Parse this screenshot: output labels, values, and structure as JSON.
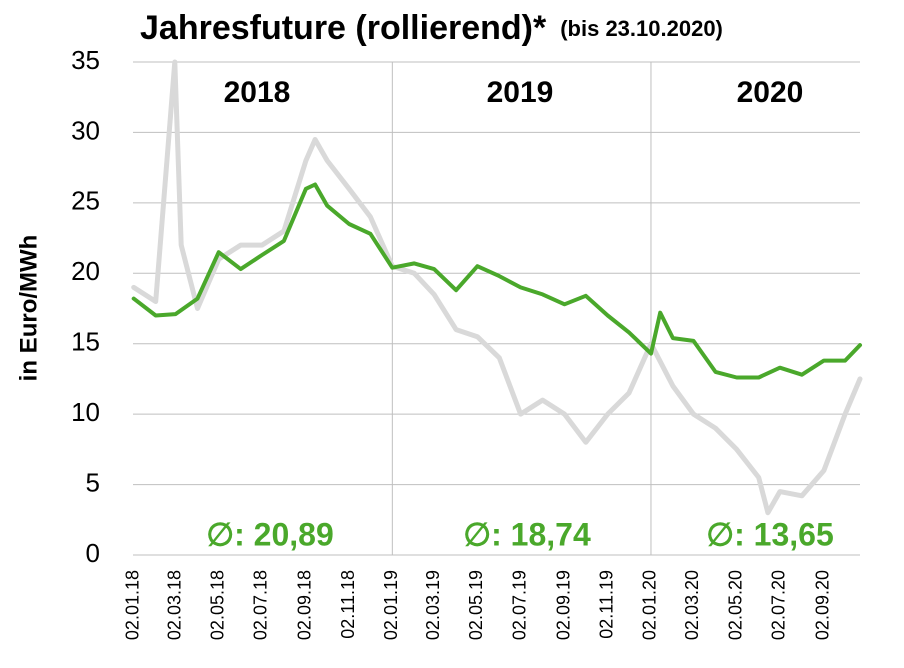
{
  "chart_data": {
    "type": "line",
    "title": "Jahresfuture (rollierend)*",
    "subtitle": "(bis 23.10.2020)",
    "y_label": "in Euro/MWh",
    "year_labels": [
      "2018",
      "2019",
      "2020"
    ],
    "averages": [
      "∅: 20,89",
      "∅: 18,74",
      "∅: 13,65"
    ],
    "year_dividers": [
      "02.01.19",
      "02.01.20"
    ],
    "xlim": [
      "01.01.18",
      "23.10.20"
    ],
    "xticks": [
      "02.01.18",
      "02.03.18",
      "02.05.18",
      "02.07.18",
      "02.09.18",
      "02.11.18",
      "02.01.19",
      "02.03.19",
      "02.05.19",
      "02.07.19",
      "02.09.19",
      "02.11.19",
      "02.01.20",
      "02.03.20",
      "02.05.20",
      "02.07.20",
      "02.09.20"
    ],
    "ylim": [
      0,
      35
    ],
    "yticks": [
      0,
      5,
      10,
      15,
      20,
      25,
      30,
      35
    ],
    "grid": true,
    "series": [
      {
        "color": "#d9d9d9",
        "x": [
          "02.01.18",
          "02.02.18",
          "01.03.18",
          "10.03.18",
          "02.04.18",
          "02.05.18",
          "02.06.18",
          "02.07.18",
          "02.08.18",
          "02.09.18",
          "15.09.18",
          "02.10.18",
          "02.11.18",
          "02.12.18",
          "02.01.19",
          "02.02.19",
          "02.03.19",
          "02.04.19",
          "02.05.19",
          "02.06.19",
          "02.07.19",
          "02.08.19",
          "02.09.19",
          "02.10.19",
          "02.11.19",
          "02.12.19",
          "02.01.20",
          "02.02.20",
          "02.03.20",
          "02.04.20",
          "02.05.20",
          "02.06.20",
          "15.06.20",
          "02.07.20",
          "02.08.20",
          "02.09.20",
          "02.10.20",
          "23.10.20"
        ],
        "values": [
          19.0,
          18.0,
          35,
          22,
          17.5,
          21,
          22,
          22,
          23,
          28,
          29.5,
          28,
          26,
          24,
          20.5,
          20,
          18.5,
          16,
          15.5,
          14,
          10,
          11,
          10,
          8,
          10,
          11.5,
          15,
          12,
          10,
          9,
          7.5,
          5.5,
          3,
          4.5,
          4.2,
          6,
          10,
          12.5
        ]
      },
      {
        "color": "#4aa82b",
        "x": [
          "02.01.18",
          "02.02.18",
          "02.03.18",
          "02.04.18",
          "02.05.18",
          "02.06.18",
          "02.07.18",
          "02.08.18",
          "02.09.18",
          "15.09.18",
          "02.10.18",
          "02.11.18",
          "02.12.18",
          "02.01.19",
          "02.02.19",
          "02.03.19",
          "02.04.19",
          "02.05.19",
          "02.06.19",
          "02.07.19",
          "02.08.19",
          "02.09.19",
          "02.10.19",
          "02.11.19",
          "02.12.19",
          "02.01.20",
          "15.01.20",
          "02.02.20",
          "02.03.20",
          "02.04.20",
          "02.05.20",
          "02.06.20",
          "02.07.20",
          "02.08.20",
          "02.09.20",
          "02.10.20",
          "23.10.20"
        ],
        "values": [
          18.2,
          17.0,
          17.1,
          18.2,
          21.5,
          20.3,
          21.3,
          22.3,
          26.0,
          26.3,
          24.8,
          23.5,
          22.8,
          20.4,
          20.7,
          20.3,
          18.8,
          20.5,
          19.8,
          19.0,
          18.5,
          17.8,
          18.4,
          17.0,
          15.8,
          14.3,
          17.2,
          15.4,
          15.2,
          13.0,
          12.6,
          12.6,
          13.3,
          12.8,
          13.8,
          13.8,
          14.9
        ]
      }
    ]
  }
}
